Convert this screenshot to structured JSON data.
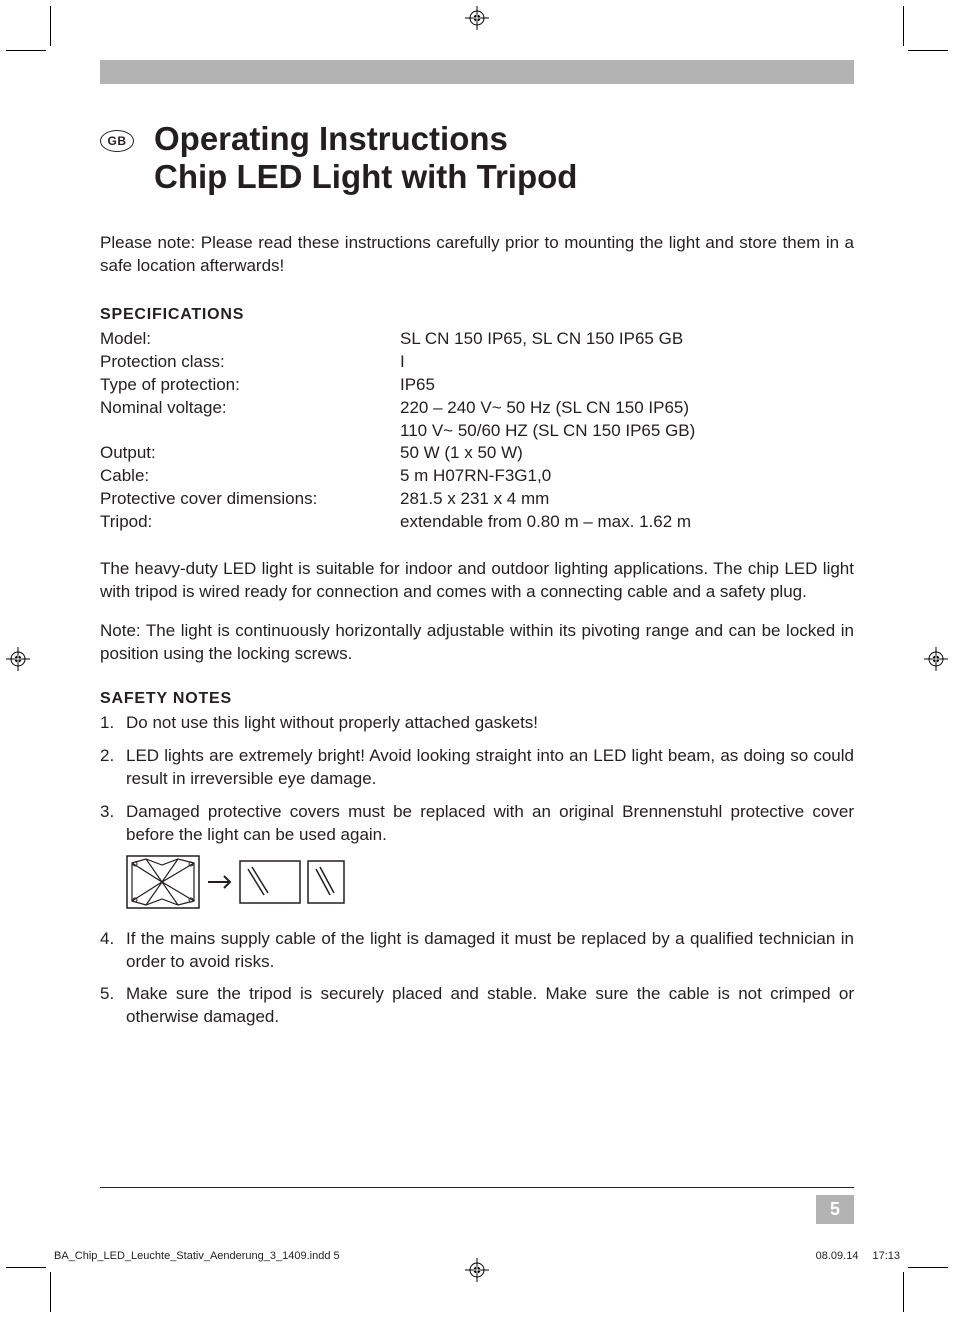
{
  "lang_badge": "GB",
  "title_line1": "Operating Instructions",
  "title_line2": "Chip LED Light with Tripod",
  "intro": "Please note: Please read these instructions carefully prior to mounting the light and store them in a safe location afterwards!",
  "specs_heading": "SPECIFICATIONS",
  "specs": [
    {
      "label": "Model:",
      "value": "SL CN 150 IP65, SL CN 150 IP65 GB"
    },
    {
      "label": "Protection class:",
      "value": "I"
    },
    {
      "label": "Type of protection:",
      "value": "IP65"
    },
    {
      "label": "Nominal voltage:",
      "value": "220 – 240 V~ 50 Hz (SL CN 150 IP65)"
    },
    {
      "label": "",
      "value": "110 V~ 50/60 HZ (SL CN 150 IP65 GB)"
    },
    {
      "label": "Output:",
      "value": "50 W (1 x 50 W)"
    },
    {
      "label": "Cable:",
      "value": "5 m H07RN-F3G1,0"
    },
    {
      "label": "Protective cover dimensions:",
      "value": "281.5 x 231 x 4 mm"
    },
    {
      "label": "Tripod:",
      "value": "extendable from 0.80 m – max. 1.62 m"
    }
  ],
  "para1": "The heavy-duty LED light is suitable for indoor and outdoor lighting applications. The chip LED light with tripod is wired ready for connection and comes with a connecting cable and a safety plug.",
  "para2": "Note: The light is continuously horizontally adjustable within its pivoting range and can be locked in position using the locking screws.",
  "safety_heading": "SAFETY NOTES",
  "safety": [
    "Do not use this light without properly attached gaskets!",
    "LED lights are extremely bright! Avoid looking straight into an LED light beam, as doing so could result in irreversible eye damage.",
    "Damaged protective covers must be replaced with an original Brennenstuhl protective cover before the light can be used again.",
    "If the mains supply cable of the light is damaged it must be replaced by a qualified technician in order to avoid risks.",
    "Make sure the tripod is securely placed and stable. Make sure the cable is not crimped or otherwise damaged."
  ],
  "page_number": "5",
  "footer_file": "BA_Chip_LED_Leuchte_Stativ_Aenderung_3_1409.indd   5",
  "footer_date": "08.09.14",
  "footer_time": "17:13",
  "colors": {
    "header_bar": "#b3b3b3",
    "text": "#231f20",
    "page_num_bg": "#b3b3b3",
    "page_num_fg": "#ffffff"
  }
}
